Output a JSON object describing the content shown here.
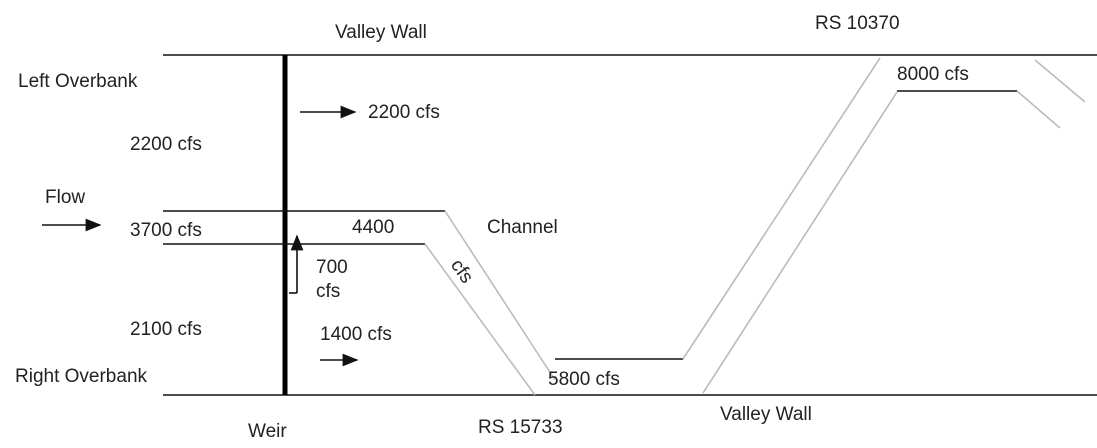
{
  "labels": {
    "top_valley_wall": "Valley Wall",
    "rs_upstream": "RS 10370",
    "left_overbank": "Left Overbank",
    "flow_8000": "8000 cfs",
    "arrow_2200": "2200 cfs",
    "left_2200": "2200 cfs",
    "flow": "Flow",
    "flow_3700": "3700 cfs",
    "flow_4400": "4400",
    "channel": "Channel",
    "cfs_diag": "cfs",
    "flow_700": "700",
    "cfs_700": "cfs",
    "left_2100": "2100 cfs",
    "arrow_1400": "1400 cfs",
    "right_overbank": "Right Overbank",
    "flow_5800": "5800 cfs",
    "weir": "Weir",
    "rs_downstream": "RS 15733",
    "bottom_valley_wall": "Valley Wall"
  }
}
